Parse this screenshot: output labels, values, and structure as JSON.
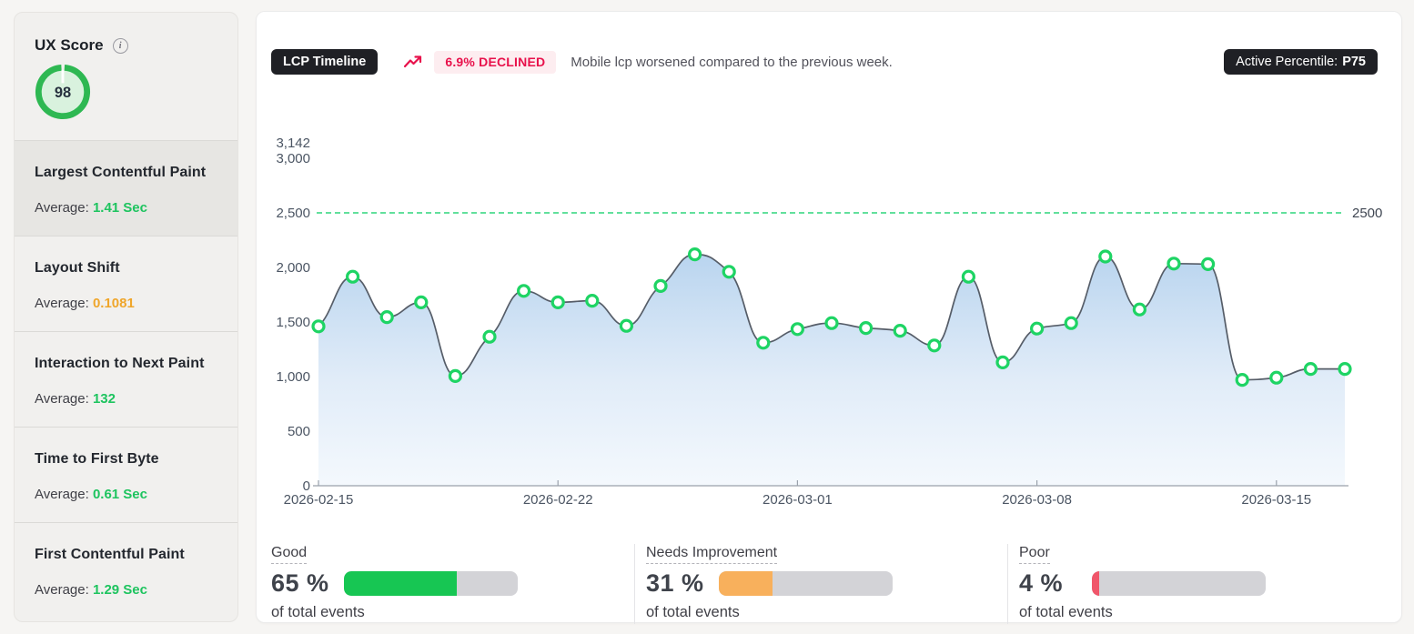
{
  "sidebar": {
    "ux_score": {
      "label": "UX Score",
      "value": "98",
      "ring_color": "#2eb852",
      "inner_color": "#d9f2de"
    },
    "average_label": "Average:",
    "metrics": [
      {
        "name": "Largest Contentful Paint",
        "value": "1.41 Sec",
        "color": "#1ec45f",
        "selected": true
      },
      {
        "name": "Layout Shift",
        "value": "0.1081",
        "color": "#efa62b",
        "selected": false
      },
      {
        "name": "Interaction to Next Paint",
        "value": "132",
        "color": "#1ec45f",
        "selected": false
      },
      {
        "name": "Time to First Byte",
        "value": "0.61 Sec",
        "color": "#1ec45f",
        "selected": false
      },
      {
        "name": "First Contentful Paint",
        "value": "1.29 Sec",
        "color": "#1ec45f",
        "selected": false
      }
    ]
  },
  "header": {
    "timeline_badge": "LCP Timeline",
    "trend_badge": "6.9% DECLINED",
    "description": "Mobile lcp worsened compared to the previous week.",
    "percentile_label": "Active Percentile:",
    "percentile_value": "P75"
  },
  "chart_data": {
    "type": "area",
    "title": "LCP Timeline",
    "x": [
      "2026-02-15",
      "2026-02-16",
      "2026-02-17",
      "2026-02-18",
      "2026-02-19",
      "2026-02-20",
      "2026-02-21",
      "2026-02-22",
      "2026-02-23",
      "2026-02-24",
      "2026-02-25",
      "2026-02-26",
      "2026-02-27",
      "2026-02-28",
      "2026-03-01",
      "2026-03-02",
      "2026-03-03",
      "2026-03-04",
      "2026-03-05",
      "2026-03-06",
      "2026-03-07",
      "2026-03-08",
      "2026-03-09",
      "2026-03-10",
      "2026-03-11",
      "2026-03-12",
      "2026-03-13",
      "2026-03-14",
      "2026-03-15",
      "2026-03-16",
      "2026-03-17"
    ],
    "values": [
      1460,
      1915,
      1545,
      1680,
      1005,
      1365,
      1785,
      1680,
      1695,
      1465,
      1830,
      2120,
      1960,
      1310,
      1435,
      1490,
      1445,
      1420,
      1285,
      1915,
      1130,
      1440,
      1490,
      2100,
      1615,
      2035,
      2030,
      970,
      990,
      1070,
      1070
    ],
    "x_ticks": [
      "2026-02-15",
      "2026-02-22",
      "2026-03-01",
      "2026-03-08",
      "2026-03-15"
    ],
    "y_ticks": [
      0,
      500,
      1000,
      1500,
      2000,
      2500,
      3000,
      3142
    ],
    "ylim": [
      0,
      3142
    ],
    "threshold": {
      "value": 2500,
      "label": "2500",
      "color": "#2fd57c"
    },
    "grid": false,
    "legend": false,
    "colors": {
      "line": "#565d68",
      "marker": "#1ed464",
      "area_top": "#b5d2ee",
      "area_bottom": "#f3f8fd",
      "axis": "#9aa1ab",
      "tick_text": "#4b5563"
    }
  },
  "footer": {
    "segments": [
      {
        "label": "Good",
        "percent": 65,
        "percent_text": "65 %",
        "caption": "of total events",
        "color": "#17c653"
      },
      {
        "label": "Needs Improvement",
        "percent": 31,
        "percent_text": "31 %",
        "caption": "of total events",
        "color": "#f8b05c"
      },
      {
        "label": "Poor",
        "percent": 4,
        "percent_text": "4 %",
        "caption": "of total events",
        "color": "#f0566a"
      }
    ]
  }
}
